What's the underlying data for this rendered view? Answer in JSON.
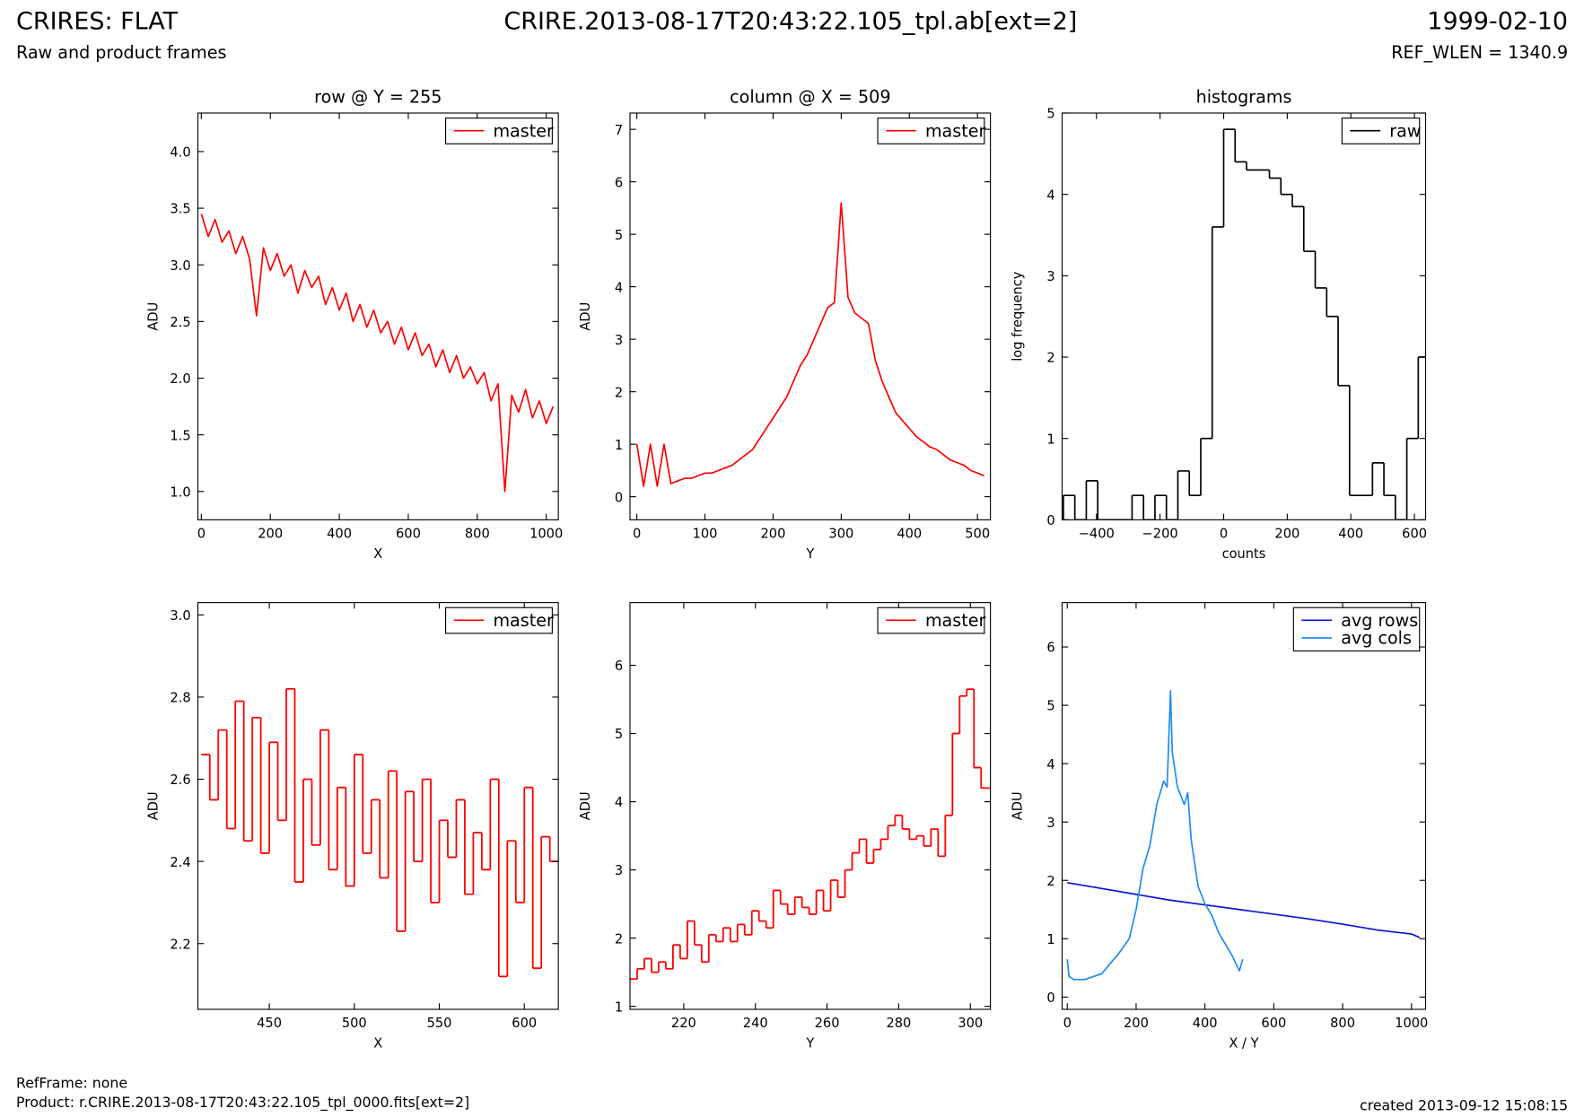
{
  "header": {
    "title": "CRIRES: FLAT",
    "subtitle": "Raw and product frames",
    "file": "CRIRE.2013-08-17T20:43:22.105_tpl.ab[ext=2]",
    "date": "1999-02-10",
    "ref_wlen": "REF_WLEN = 1340.9"
  },
  "footer": {
    "refframe": "RefFrame: none",
    "product": "Product: r.CRIRE.2013-08-17T20:43:22.105_tpl_0000.fits[ext=2]",
    "created": "created 2013-09-12 15:08:15"
  },
  "chart_data": [
    {
      "type": "line",
      "title": "row @ Y = 255",
      "xlabel": "X",
      "ylabel": "ADU",
      "drawstyle": "default",
      "legend": "upper right",
      "x": [
        0,
        20,
        40,
        60,
        80,
        100,
        120,
        140,
        160,
        180,
        200,
        220,
        240,
        260,
        280,
        300,
        320,
        340,
        360,
        380,
        400,
        420,
        440,
        460,
        480,
        500,
        520,
        540,
        560,
        580,
        600,
        620,
        640,
        660,
        680,
        700,
        720,
        740,
        760,
        780,
        800,
        820,
        840,
        860,
        880,
        900,
        920,
        940,
        960,
        980,
        1000,
        1020
      ],
      "series": [
        {
          "name": "master",
          "color": "#ff0000",
          "values": [
            3.45,
            3.25,
            3.4,
            3.2,
            3.3,
            3.1,
            3.25,
            3.05,
            2.55,
            3.15,
            2.95,
            3.1,
            2.9,
            3.0,
            2.75,
            2.95,
            2.8,
            2.9,
            2.65,
            2.8,
            2.6,
            2.75,
            2.5,
            2.65,
            2.45,
            2.6,
            2.4,
            2.5,
            2.3,
            2.45,
            2.25,
            2.4,
            2.2,
            2.3,
            2.1,
            2.25,
            2.05,
            2.2,
            2.0,
            2.1,
            1.95,
            2.05,
            1.8,
            1.95,
            1.0,
            1.85,
            1.7,
            1.9,
            1.65,
            1.8,
            1.6,
            1.75
          ]
        }
      ],
      "xlim": [
        -10,
        1035
      ],
      "ylim": [
        0.75,
        4.34
      ],
      "xticks": [
        0,
        200,
        400,
        600,
        800,
        1000
      ],
      "yticks": [
        {
          "value": 1,
          "label": "1.0"
        },
        1.5,
        {
          "value": 2,
          "label": "2.0"
        },
        2.5,
        {
          "value": 3,
          "label": "3.0"
        },
        3.5,
        {
          "value": 4,
          "label": "4.0"
        }
      ]
    },
    {
      "type": "line",
      "title": "column @ X = 509",
      "xlabel": "Y",
      "ylabel": "ADU",
      "drawstyle": "default",
      "legend": "upper right",
      "x": [
        0,
        10,
        20,
        30,
        40,
        50,
        60,
        70,
        80,
        90,
        100,
        110,
        120,
        130,
        140,
        150,
        160,
        170,
        180,
        190,
        200,
        210,
        220,
        230,
        240,
        250,
        260,
        270,
        280,
        290,
        300,
        310,
        320,
        330,
        340,
        350,
        360,
        370,
        380,
        390,
        400,
        410,
        420,
        430,
        440,
        450,
        460,
        470,
        480,
        490,
        500,
        510
      ],
      "series": [
        {
          "name": "master",
          "color": "#ff0000",
          "values": [
            1.0,
            0.2,
            1.0,
            0.2,
            1.0,
            0.25,
            0.3,
            0.35,
            0.35,
            0.4,
            0.45,
            0.45,
            0.5,
            0.55,
            0.6,
            0.7,
            0.8,
            0.9,
            1.1,
            1.3,
            1.5,
            1.7,
            1.9,
            2.2,
            2.5,
            2.7,
            3.0,
            3.3,
            3.6,
            3.7,
            5.6,
            3.8,
            3.5,
            3.4,
            3.3,
            2.6,
            2.2,
            1.9,
            1.6,
            1.45,
            1.3,
            1.15,
            1.05,
            0.95,
            0.9,
            0.8,
            0.7,
            0.65,
            0.6,
            0.5,
            0.45,
            0.4
          ]
        }
      ],
      "xlim": [
        -10,
        519
      ],
      "ylim": [
        -0.44,
        7.31
      ],
      "xticks": [
        0,
        100,
        200,
        300,
        400,
        500
      ],
      "yticks": [
        0,
        1,
        2,
        3,
        4,
        5,
        6,
        7
      ]
    },
    {
      "type": "histogram",
      "title": "histograms",
      "xlabel": "counts",
      "ylabel": "log frequency",
      "legend": "upper right",
      "name": "raw",
      "color": "#000000",
      "bins": [
        -504,
        -468,
        -432,
        -396,
        -360,
        -324,
        -288,
        -252,
        -216,
        -180,
        -144,
        -108,
        -72,
        -36,
        0,
        36,
        72,
        108,
        144,
        180,
        216,
        252,
        288,
        324,
        360,
        396,
        432,
        468,
        504,
        540,
        576,
        612,
        648
      ],
      "counts": [
        0.3,
        0,
        0.48,
        0,
        0,
        0,
        0.3,
        0,
        0.3,
        0,
        0.6,
        0.3,
        1.0,
        3.6,
        4.8,
        4.4,
        4.3,
        4.3,
        4.2,
        4.0,
        3.85,
        3.3,
        2.85,
        2.5,
        1.65,
        0.3,
        0.3,
        0.7,
        0.3,
        0,
        1.0,
        2.0
      ],
      "xlim": [
        -508,
        635
      ],
      "ylim": [
        0,
        5
      ],
      "xticks": [
        {
          "value": -400,
          "label": "−400"
        },
        {
          "value": -200,
          "label": "−200"
        },
        0,
        200,
        400,
        600
      ],
      "yticks": [
        0,
        1,
        2,
        3,
        4,
        5
      ]
    },
    {
      "type": "line",
      "xlabel": "X",
      "ylabel": "ADU",
      "drawstyle": "steps-post",
      "legend": "upper right",
      "x": [
        410,
        415,
        420,
        425,
        430,
        435,
        440,
        445,
        450,
        455,
        460,
        465,
        470,
        475,
        480,
        485,
        490,
        495,
        500,
        505,
        510,
        515,
        520,
        525,
        530,
        535,
        540,
        545,
        550,
        555,
        560,
        565,
        570,
        575,
        580,
        585,
        590,
        595,
        600,
        605,
        610,
        615
      ],
      "series": [
        {
          "name": "master",
          "color": "#ff0000",
          "values": [
            2.66,
            2.55,
            2.72,
            2.48,
            2.79,
            2.45,
            2.75,
            2.42,
            2.69,
            2.5,
            2.82,
            2.35,
            2.6,
            2.44,
            2.72,
            2.38,
            2.58,
            2.34,
            2.66,
            2.42,
            2.55,
            2.36,
            2.62,
            2.23,
            2.57,
            2.4,
            2.6,
            2.3,
            2.5,
            2.41,
            2.55,
            2.32,
            2.47,
            2.38,
            2.6,
            2.12,
            2.45,
            2.3,
            2.58,
            2.14,
            2.46,
            2.4
          ]
        }
      ],
      "xlim": [
        408,
        620
      ],
      "ylim": [
        2.04,
        3.03
      ],
      "xticks": [
        450,
        500,
        550,
        600
      ],
      "yticks": [
        2.2,
        2.4,
        2.6,
        2.8,
        {
          "value": 3,
          "label": "3.0"
        }
      ]
    },
    {
      "type": "line",
      "xlabel": "Y",
      "ylabel": "ADU",
      "drawstyle": "steps-post",
      "legend": "upper right",
      "x": [
        205,
        207,
        209,
        211,
        213,
        215,
        217,
        219,
        221,
        223,
        225,
        227,
        229,
        231,
        233,
        235,
        237,
        239,
        241,
        243,
        245,
        247,
        249,
        251,
        253,
        255,
        257,
        259,
        261,
        263,
        265,
        267,
        269,
        271,
        273,
        275,
        277,
        279,
        281,
        283,
        285,
        287,
        289,
        291,
        293,
        295,
        297,
        299,
        301,
        303
      ],
      "series": [
        {
          "name": "master",
          "color": "#ff0000",
          "values": [
            1.4,
            1.55,
            1.7,
            1.5,
            1.65,
            1.55,
            1.9,
            1.7,
            2.25,
            1.9,
            1.65,
            2.05,
            1.95,
            2.15,
            1.95,
            2.2,
            2.05,
            2.4,
            2.25,
            2.15,
            2.7,
            2.5,
            2.35,
            2.6,
            2.45,
            2.35,
            2.7,
            2.4,
            2.85,
            2.6,
            3.0,
            3.25,
            3.45,
            3.1,
            3.3,
            3.45,
            3.65,
            3.8,
            3.6,
            3.45,
            3.5,
            3.35,
            3.6,
            3.2,
            3.8,
            5.0,
            5.55,
            5.65,
            4.5,
            4.2
          ]
        }
      ],
      "xlim": [
        205,
        305.6
      ],
      "ylim": [
        0.956,
        6.92
      ],
      "xticks": [
        220,
        240,
        260,
        280,
        300
      ],
      "yticks": [
        1,
        2,
        3,
        4,
        5,
        6
      ]
    },
    {
      "type": "line",
      "xlabel": "X / Y",
      "ylabel": "ADU",
      "drawstyle": "default",
      "legend": "upper right",
      "series": [
        {
          "name": "avg rows",
          "color": "#0a14d2",
          "x": [
            0,
            100,
            200,
            300,
            400,
            500,
            600,
            700,
            800,
            900,
            1000,
            1024
          ],
          "values": [
            1.96,
            1.86,
            1.76,
            1.66,
            1.58,
            1.5,
            1.42,
            1.34,
            1.25,
            1.15,
            1.08,
            1.02
          ]
        },
        {
          "name": "avg cols",
          "color": "#1e8cf0",
          "x": [
            0,
            5,
            20,
            50,
            100,
            150,
            180,
            200,
            220,
            240,
            260,
            280,
            290,
            300,
            305,
            320,
            340,
            350,
            360,
            380,
            400,
            420,
            440,
            460,
            480,
            500,
            510
          ],
          "values": [
            0.65,
            0.35,
            0.3,
            0.3,
            0.4,
            0.75,
            1.0,
            1.5,
            2.2,
            2.6,
            3.3,
            3.7,
            3.6,
            5.25,
            4.2,
            3.6,
            3.3,
            3.5,
            2.7,
            1.9,
            1.6,
            1.4,
            1.1,
            0.9,
            0.7,
            0.45,
            0.65
          ]
        }
      ],
      "xlim": [
        -15,
        1041
      ],
      "ylim": [
        -0.21,
        6.76
      ],
      "xticks": [
        0,
        200,
        400,
        600,
        800,
        1000
      ],
      "yticks": [
        0,
        1,
        2,
        3,
        4,
        5,
        6
      ]
    }
  ]
}
